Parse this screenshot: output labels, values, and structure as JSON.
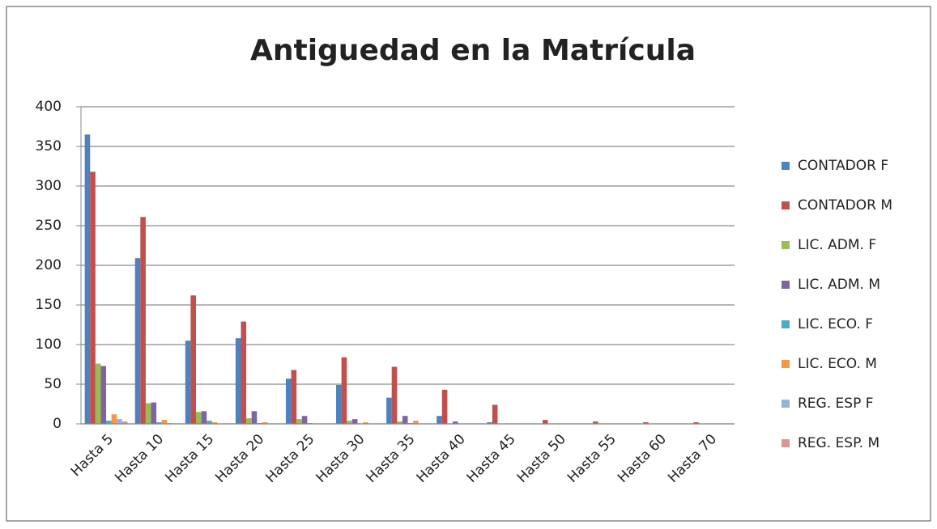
{
  "chart_data": {
    "type": "bar",
    "title": "Antiguedad en la Matrícula",
    "categories": [
      "Hasta 5",
      "Hasta 10",
      "Hasta 15",
      "Hasta 20",
      "Hasta 25",
      "Hasta 30",
      "Hasta 35",
      "Hasta 40",
      "Hasta 45",
      "Hasta 50",
      "Hasta 55",
      "Hasta 60",
      "Hasta 70"
    ],
    "series": [
      {
        "name": "CONTADOR F",
        "color": "#4f81bd",
        "values": [
          365,
          209,
          105,
          108,
          57,
          49,
          33,
          10,
          2,
          0,
          0,
          0,
          0
        ]
      },
      {
        "name": "CONTADOR M",
        "color": "#c0504d",
        "values": [
          318,
          261,
          162,
          129,
          68,
          84,
          72,
          43,
          24,
          5,
          3,
          2,
          2
        ]
      },
      {
        "name": "LIC. ADM. F",
        "color": "#9bbb59",
        "values": [
          76,
          26,
          15,
          7,
          6,
          4,
          3,
          0,
          0,
          0,
          0,
          0,
          0
        ]
      },
      {
        "name": "LIC. ADM. M",
        "color": "#8064a2",
        "values": [
          73,
          27,
          16,
          16,
          10,
          6,
          10,
          3,
          0,
          0,
          0,
          0,
          0
        ]
      },
      {
        "name": "LIC. ECO. F",
        "color": "#4bacc6",
        "values": [
          4,
          2,
          4,
          1,
          1,
          0,
          1,
          0,
          0,
          0,
          0,
          0,
          0
        ]
      },
      {
        "name": "LIC. ECO. M",
        "color": "#f79646",
        "values": [
          12,
          5,
          2,
          2,
          0,
          2,
          4,
          0,
          0,
          0,
          0,
          0,
          0
        ]
      },
      {
        "name": "REG. ESP F",
        "color": "#95b3d7",
        "values": [
          6,
          1,
          0,
          0,
          0,
          0,
          0,
          0,
          0,
          0,
          0,
          0,
          0
        ]
      },
      {
        "name": "REG. ESP. M",
        "color": "#d99694",
        "values": [
          3,
          0,
          0,
          0,
          0,
          0,
          0,
          0,
          0,
          0,
          0,
          0,
          0
        ]
      }
    ],
    "ylim": [
      0,
      400
    ],
    "yticks": [
      0,
      50,
      100,
      150,
      200,
      250,
      300,
      350,
      400
    ],
    "grid": true,
    "legend": "right"
  }
}
